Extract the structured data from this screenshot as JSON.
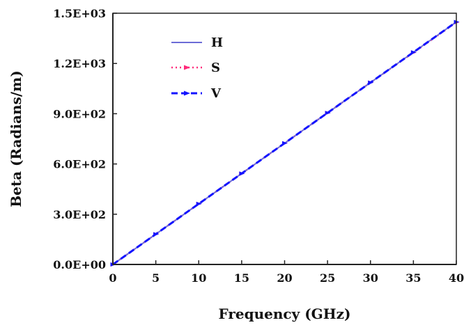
{
  "chart_data": {
    "type": "line",
    "title": "",
    "xlabel": "Frequency (GHz)",
    "ylabel": "Beta (Radians/m)",
    "xlim": [
      0,
      40
    ],
    "ylim": [
      0,
      1500
    ],
    "xticks": [
      0,
      5,
      10,
      15,
      20,
      25,
      30,
      35,
      40
    ],
    "xtick_labels": [
      "0",
      "5",
      "10",
      "15",
      "20",
      "25",
      "30",
      "35",
      "40"
    ],
    "yticks": [
      0,
      300,
      600,
      900,
      1200,
      1500
    ],
    "ytick_labels": [
      "0.0E+00",
      "3.0E+02",
      "6.0E+02",
      "9.0E+02",
      "1.2E+03",
      "1.5E+03"
    ],
    "grid": false,
    "legend_position": "top-left",
    "x": [
      0,
      5,
      10,
      15,
      20,
      25,
      30,
      35,
      40
    ],
    "series": [
      {
        "name": "H",
        "color": "#6b6bd6",
        "style": "solid",
        "values": [
          0,
          181,
          362,
          543,
          724,
          905,
          1086,
          1267,
          1448
        ]
      },
      {
        "name": "S",
        "color": "#ff2a7a",
        "style": "dotted-markers",
        "values": [
          0,
          181,
          362,
          543,
          724,
          905,
          1086,
          1265,
          1446
        ]
      },
      {
        "name": "V",
        "color": "#1414ff",
        "style": "dashed-markers",
        "values": [
          0,
          181,
          362,
          543,
          724,
          905,
          1086,
          1267,
          1448
        ]
      }
    ]
  }
}
